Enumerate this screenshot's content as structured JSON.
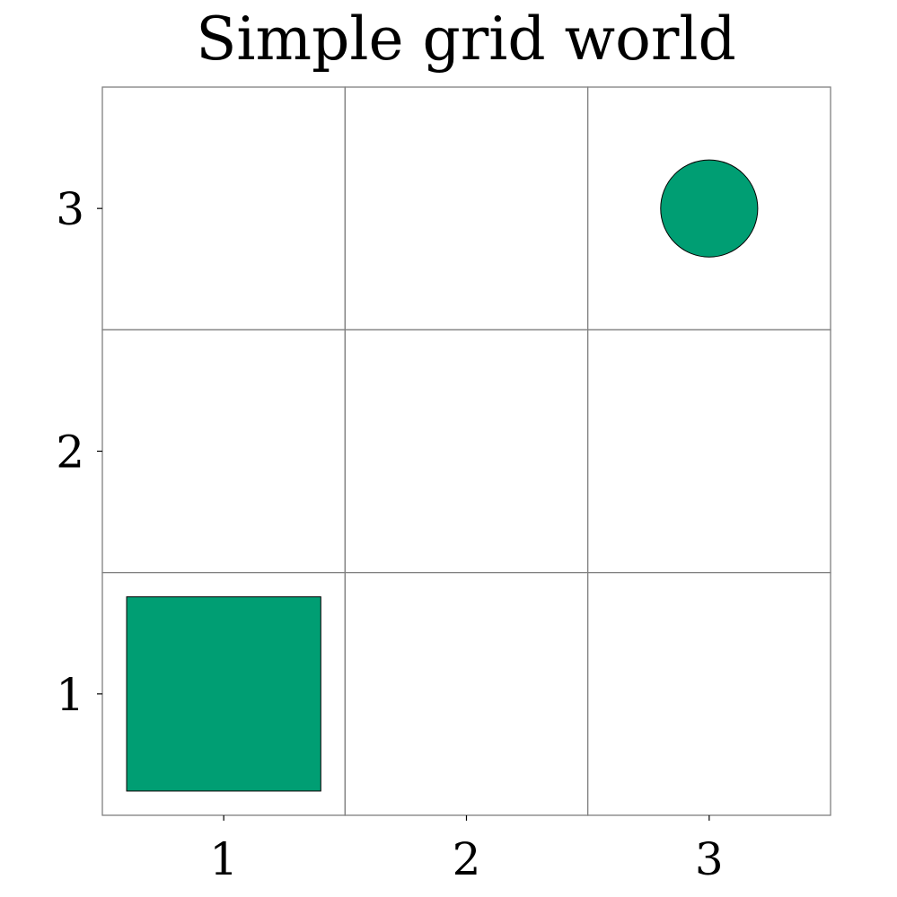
{
  "title": "Simple grid world",
  "grid": {
    "rows": 3,
    "cols": 3,
    "x_ticks": [
      "1",
      "2",
      "3"
    ],
    "y_ticks": [
      "1",
      "2",
      "3"
    ],
    "line_color": "#808080",
    "border_color": "#808080"
  },
  "objects": [
    {
      "shape": "square",
      "col": 1,
      "row": 1,
      "fill": "#009e73",
      "stroke": "#000000"
    },
    {
      "shape": "circle",
      "col": 3,
      "row": 3,
      "fill": "#009e73",
      "stroke": "#000000"
    }
  ]
}
